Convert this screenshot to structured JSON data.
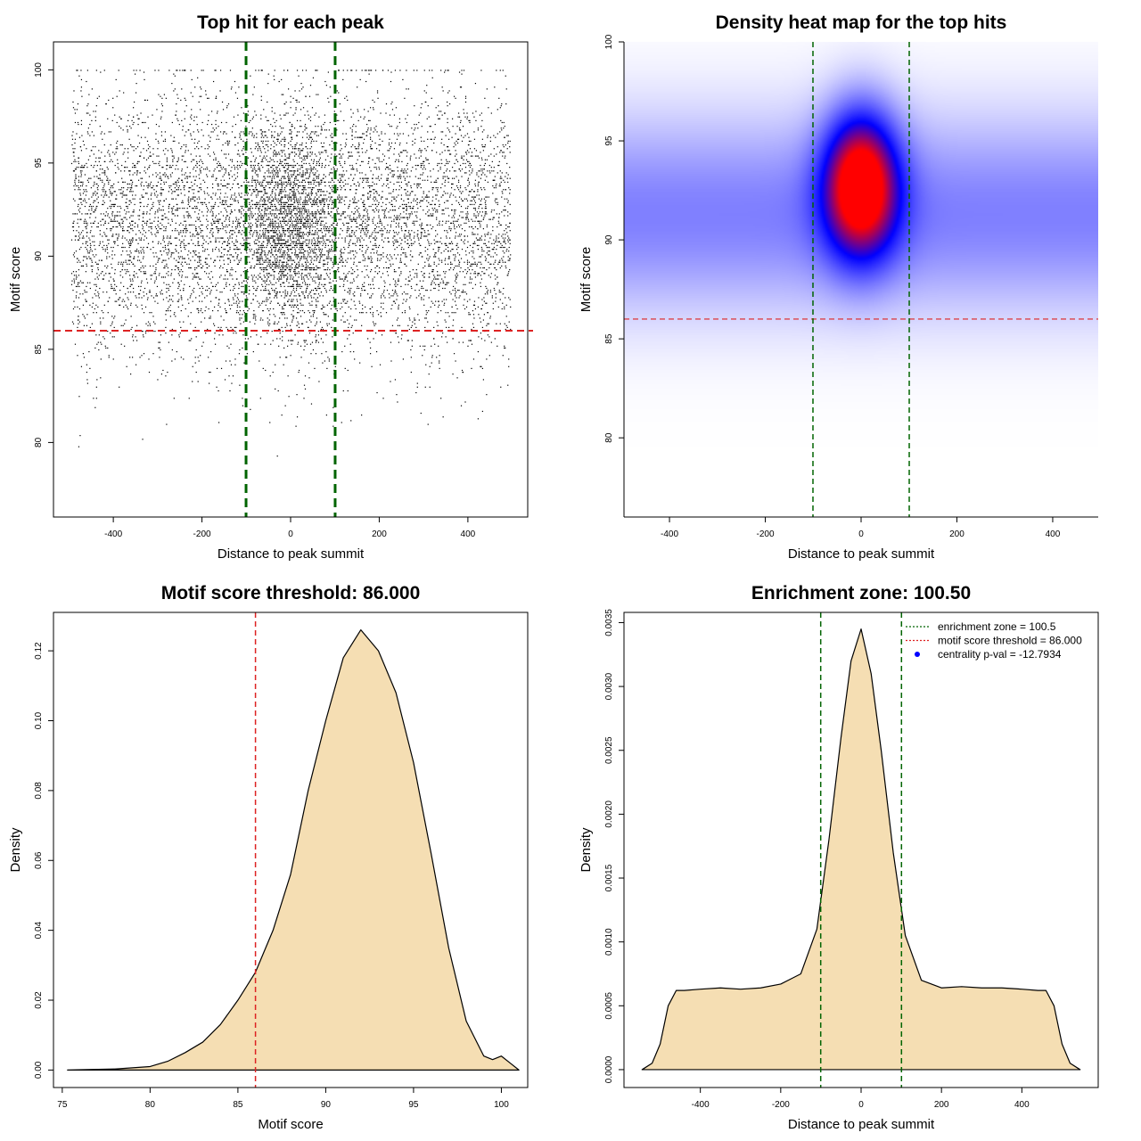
{
  "chart_data": [
    {
      "type": "scatter",
      "title": "Top hit for each peak",
      "xlabel": "Distance to peak summit",
      "ylabel": "Motif score",
      "xlim": [
        -535,
        535
      ],
      "ylim": [
        76,
        101.5
      ],
      "xticks": [
        -400,
        -200,
        0,
        200,
        400
      ],
      "yticks": [
        80,
        85,
        90,
        95,
        100
      ],
      "threshold": 86.0,
      "enrichment_zone": [
        -100.5,
        100.5
      ],
      "colors": {
        "points": "#000000",
        "threshold": "#dd2222",
        "zone": "#006400"
      },
      "distribution": {
        "x_range": [
          -495,
          495
        ],
        "score_mean": 91.8,
        "score_sd": 3.2,
        "score_max": 100,
        "central_sd": 60,
        "central_fraction": 0.22
      }
    },
    {
      "type": "heatmap",
      "title": "Density heat map for the top hits",
      "xlabel": "Distance to peak summit",
      "ylabel": "Motif score",
      "xlim": [
        -495,
        495
      ],
      "ylim": [
        76,
        100
      ],
      "xticks": [
        -400,
        -200,
        0,
        200,
        400
      ],
      "yticks": [
        80,
        85,
        90,
        95,
        100
      ],
      "threshold": 86.0,
      "enrichment_zone": [
        -100.5,
        100.5
      ],
      "colors": {
        "low": "#ffffff",
        "mid": "#0000ff",
        "high": "#ff0000",
        "threshold": "#dd2222",
        "zone": "#006400"
      },
      "peak": {
        "x": 0,
        "y": 92.8
      }
    },
    {
      "type": "area",
      "title": "Motif score threshold: 86.000",
      "xlabel": "Motif score",
      "ylabel": "Density",
      "xlim": [
        74.5,
        101.5
      ],
      "ylim": [
        -0.005,
        0.131
      ],
      "xticks": [
        75,
        80,
        85,
        90,
        95,
        100
      ],
      "yticks": [
        0.0,
        0.02,
        0.04,
        0.06,
        0.08,
        0.1,
        0.12
      ],
      "ytick_labels": [
        "0.00",
        "0.02",
        "0.04",
        "0.06",
        "0.08",
        "0.10",
        "0.12"
      ],
      "threshold": 86.0,
      "colors": {
        "fill": "#f5deb3",
        "line": "#000000",
        "threshold": "#dd2222"
      },
      "x": [
        75.3,
        78,
        80,
        81,
        82,
        83,
        84,
        85,
        86,
        87,
        88,
        89,
        90,
        91,
        92,
        93,
        94,
        95,
        96,
        97,
        98,
        99,
        99.5,
        100,
        100.5,
        101
      ],
      "y": [
        0.0,
        0.0003,
        0.001,
        0.0025,
        0.005,
        0.008,
        0.013,
        0.02,
        0.028,
        0.04,
        0.056,
        0.08,
        0.1,
        0.118,
        0.126,
        0.12,
        0.108,
        0.088,
        0.062,
        0.035,
        0.014,
        0.004,
        0.003,
        0.004,
        0.002,
        0.0
      ]
    },
    {
      "type": "area",
      "title": "Enrichment zone: 100.50",
      "xlabel": "Distance to peak summit",
      "ylabel": "Density",
      "xlim": [
        -590,
        590
      ],
      "ylim": [
        -0.00014,
        0.00358
      ],
      "xticks": [
        -400,
        -200,
        0,
        200,
        400
      ],
      "yticks": [
        0.0,
        0.0005,
        0.001,
        0.0015,
        0.002,
        0.0025,
        0.003,
        0.0035
      ],
      "ytick_labels": [
        "0.0000",
        "0.0005",
        "0.0010",
        "0.0015",
        "0.0020",
        "0.0025",
        "0.0030",
        "0.0035"
      ],
      "enrichment_zone": [
        -100.5,
        100.5
      ],
      "colors": {
        "fill": "#f5deb3",
        "line": "#000000",
        "zone": "#006400",
        "threshold": "#dd2222",
        "pval": "#0000ff"
      },
      "x": [
        -545,
        -520,
        -500,
        -480,
        -460,
        -440,
        -400,
        -350,
        -300,
        -250,
        -200,
        -150,
        -110,
        -80,
        -50,
        -25,
        0,
        25,
        50,
        80,
        110,
        150,
        200,
        250,
        300,
        350,
        400,
        440,
        460,
        480,
        500,
        520,
        545
      ],
      "y": [
        0.0,
        5e-05,
        0.0002,
        0.0005,
        0.00062,
        0.00062,
        0.00063,
        0.00064,
        0.00063,
        0.00064,
        0.00067,
        0.00075,
        0.0011,
        0.0018,
        0.0026,
        0.0032,
        0.00345,
        0.0031,
        0.0025,
        0.0017,
        0.00105,
        0.0007,
        0.00064,
        0.00065,
        0.00064,
        0.00064,
        0.00063,
        0.00062,
        0.00062,
        0.0005,
        0.0002,
        5e-05,
        0.0
      ],
      "legend": [
        {
          "label": "enrichment zone = 100.5",
          "kind": "line",
          "color": "#006400"
        },
        {
          "label": "motif score threshold = 86.000",
          "kind": "line",
          "color": "#dd2222"
        },
        {
          "label": "centrality p-val = -12.7934",
          "kind": "point",
          "color": "#0000ff"
        }
      ]
    }
  ]
}
